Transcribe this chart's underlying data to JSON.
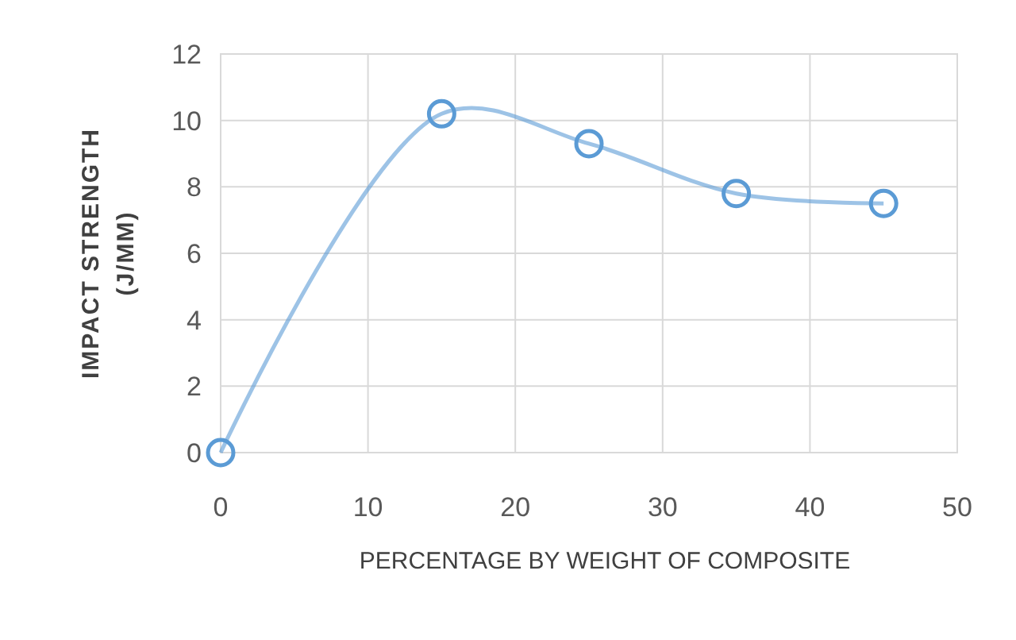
{
  "chart_data": {
    "type": "line",
    "xlabel": "PERCENTAGE BY WEIGHT OF COMPOSITE",
    "ylabel": "IMPACT STRENGTH (J/MM)",
    "x": [
      0,
      15,
      25,
      35,
      45
    ],
    "series": [
      {
        "color": "#5b9bd5",
        "values": [
          0,
          10.2,
          9.3,
          7.8,
          7.5
        ]
      }
    ],
    "xlim": [
      0,
      50
    ],
    "xticks": [
      0,
      10,
      20,
      30,
      40,
      50
    ],
    "ylim": [
      0,
      12
    ],
    "yticks": [
      0,
      2,
      4,
      6,
      8,
      10,
      12
    ],
    "grid": true,
    "marker": "circle",
    "line_style": "solid"
  }
}
